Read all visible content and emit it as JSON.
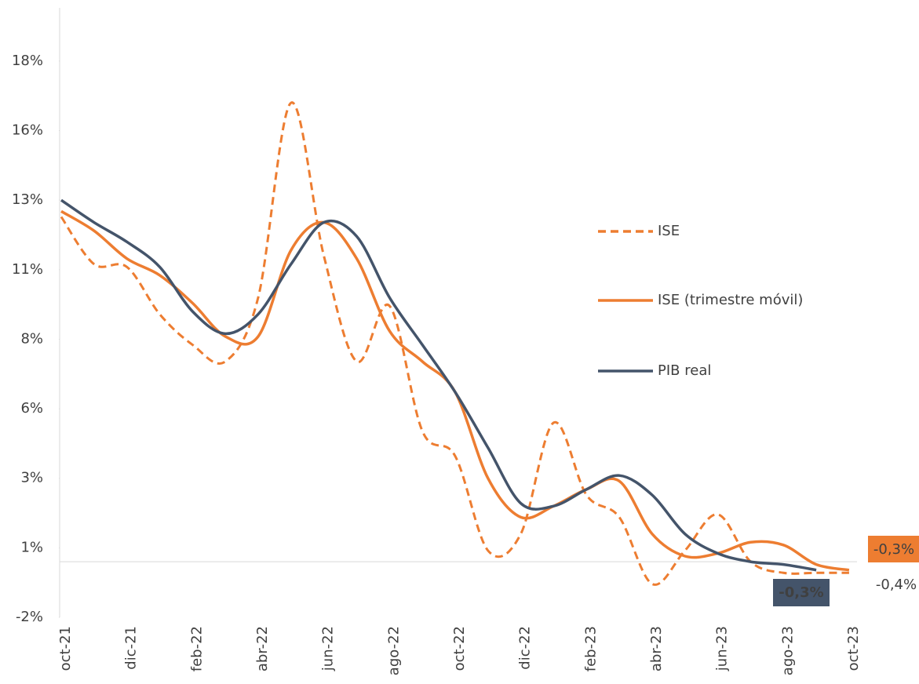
{
  "chart_data": {
    "type": "line",
    "categories": [
      "oct-21",
      null,
      "dic-21",
      null,
      "feb-22",
      null,
      "abr-22",
      null,
      "jun-22",
      null,
      "ago-22",
      null,
      "oct-22",
      null,
      "dic-22",
      null,
      "feb-23",
      null,
      "abr-23",
      null,
      "jun-23",
      null,
      "ago-23",
      null,
      "oct-23"
    ],
    "series": [
      {
        "name": "ISE",
        "color": "#ED7D31",
        "dashed": true,
        "values": [
          12.4,
          10.7,
          10.6,
          8.9,
          7.8,
          7.2,
          9.5,
          16.5,
          11.0,
          7.2,
          9.2,
          4.7,
          3.8,
          0.4,
          1.0,
          5.0,
          2.4,
          1.6,
          -0.8,
          0.4,
          1.7,
          0.0,
          -0.4,
          -0.4,
          -0.4
        ],
        "value_labels": [
          null,
          null,
          null,
          null,
          null,
          null,
          null,
          null,
          null,
          null,
          null,
          null,
          null,
          null,
          null,
          null,
          null,
          null,
          null,
          null,
          null,
          null,
          null,
          null,
          "-0,4%"
        ]
      },
      {
        "name": "ISE (trimestre móvil)",
        "color": "#ED7D31",
        "dashed": false,
        "values": [
          12.6,
          11.9,
          10.9,
          10.3,
          9.3,
          8.1,
          8.1,
          11.2,
          12.2,
          10.9,
          8.3,
          7.2,
          6.1,
          3.0,
          1.6,
          2.0,
          2.6,
          2.9,
          1.0,
          0.2,
          0.3,
          0.7,
          0.6,
          -0.1,
          -0.3
        ],
        "value_labels": [
          null,
          null,
          null,
          null,
          null,
          null,
          null,
          null,
          null,
          null,
          null,
          null,
          null,
          null,
          null,
          null,
          null,
          null,
          null,
          null,
          null,
          null,
          null,
          null,
          "-0,3%"
        ]
      },
      {
        "name": "PIB real",
        "color": "#44546A",
        "dashed": false,
        "values": [
          13.0,
          12.2,
          11.5,
          10.6,
          9.0,
          8.2,
          8.9,
          10.7,
          12.2,
          11.7,
          9.5,
          7.8,
          6.1,
          4.1,
          2.1,
          2.0,
          2.6,
          3.1,
          2.4,
          1.0,
          0.3,
          0.0,
          -0.1,
          -0.3,
          null
        ],
        "value_labels": [
          null,
          null,
          null,
          null,
          null,
          null,
          null,
          null,
          null,
          null,
          null,
          null,
          null,
          null,
          null,
          null,
          null,
          null,
          null,
          null,
          null,
          null,
          null,
          "-0,3%",
          null
        ]
      }
    ],
    "ylim": [
      -2,
      20
    ],
    "yticks": [
      {
        "value": -2,
        "label": "-2%"
      },
      {
        "value": 0.5,
        "label": "1%"
      },
      {
        "value": 3,
        "label": "3%"
      },
      {
        "value": 5.5,
        "label": "6%"
      },
      {
        "value": 8,
        "label": "8%"
      },
      {
        "value": 10.5,
        "label": "11%"
      },
      {
        "value": 13,
        "label": "13%"
      },
      {
        "value": 15.5,
        "label": "16%"
      },
      {
        "value": 18,
        "label": "18%"
      }
    ],
    "grid": false,
    "legend": "right"
  }
}
